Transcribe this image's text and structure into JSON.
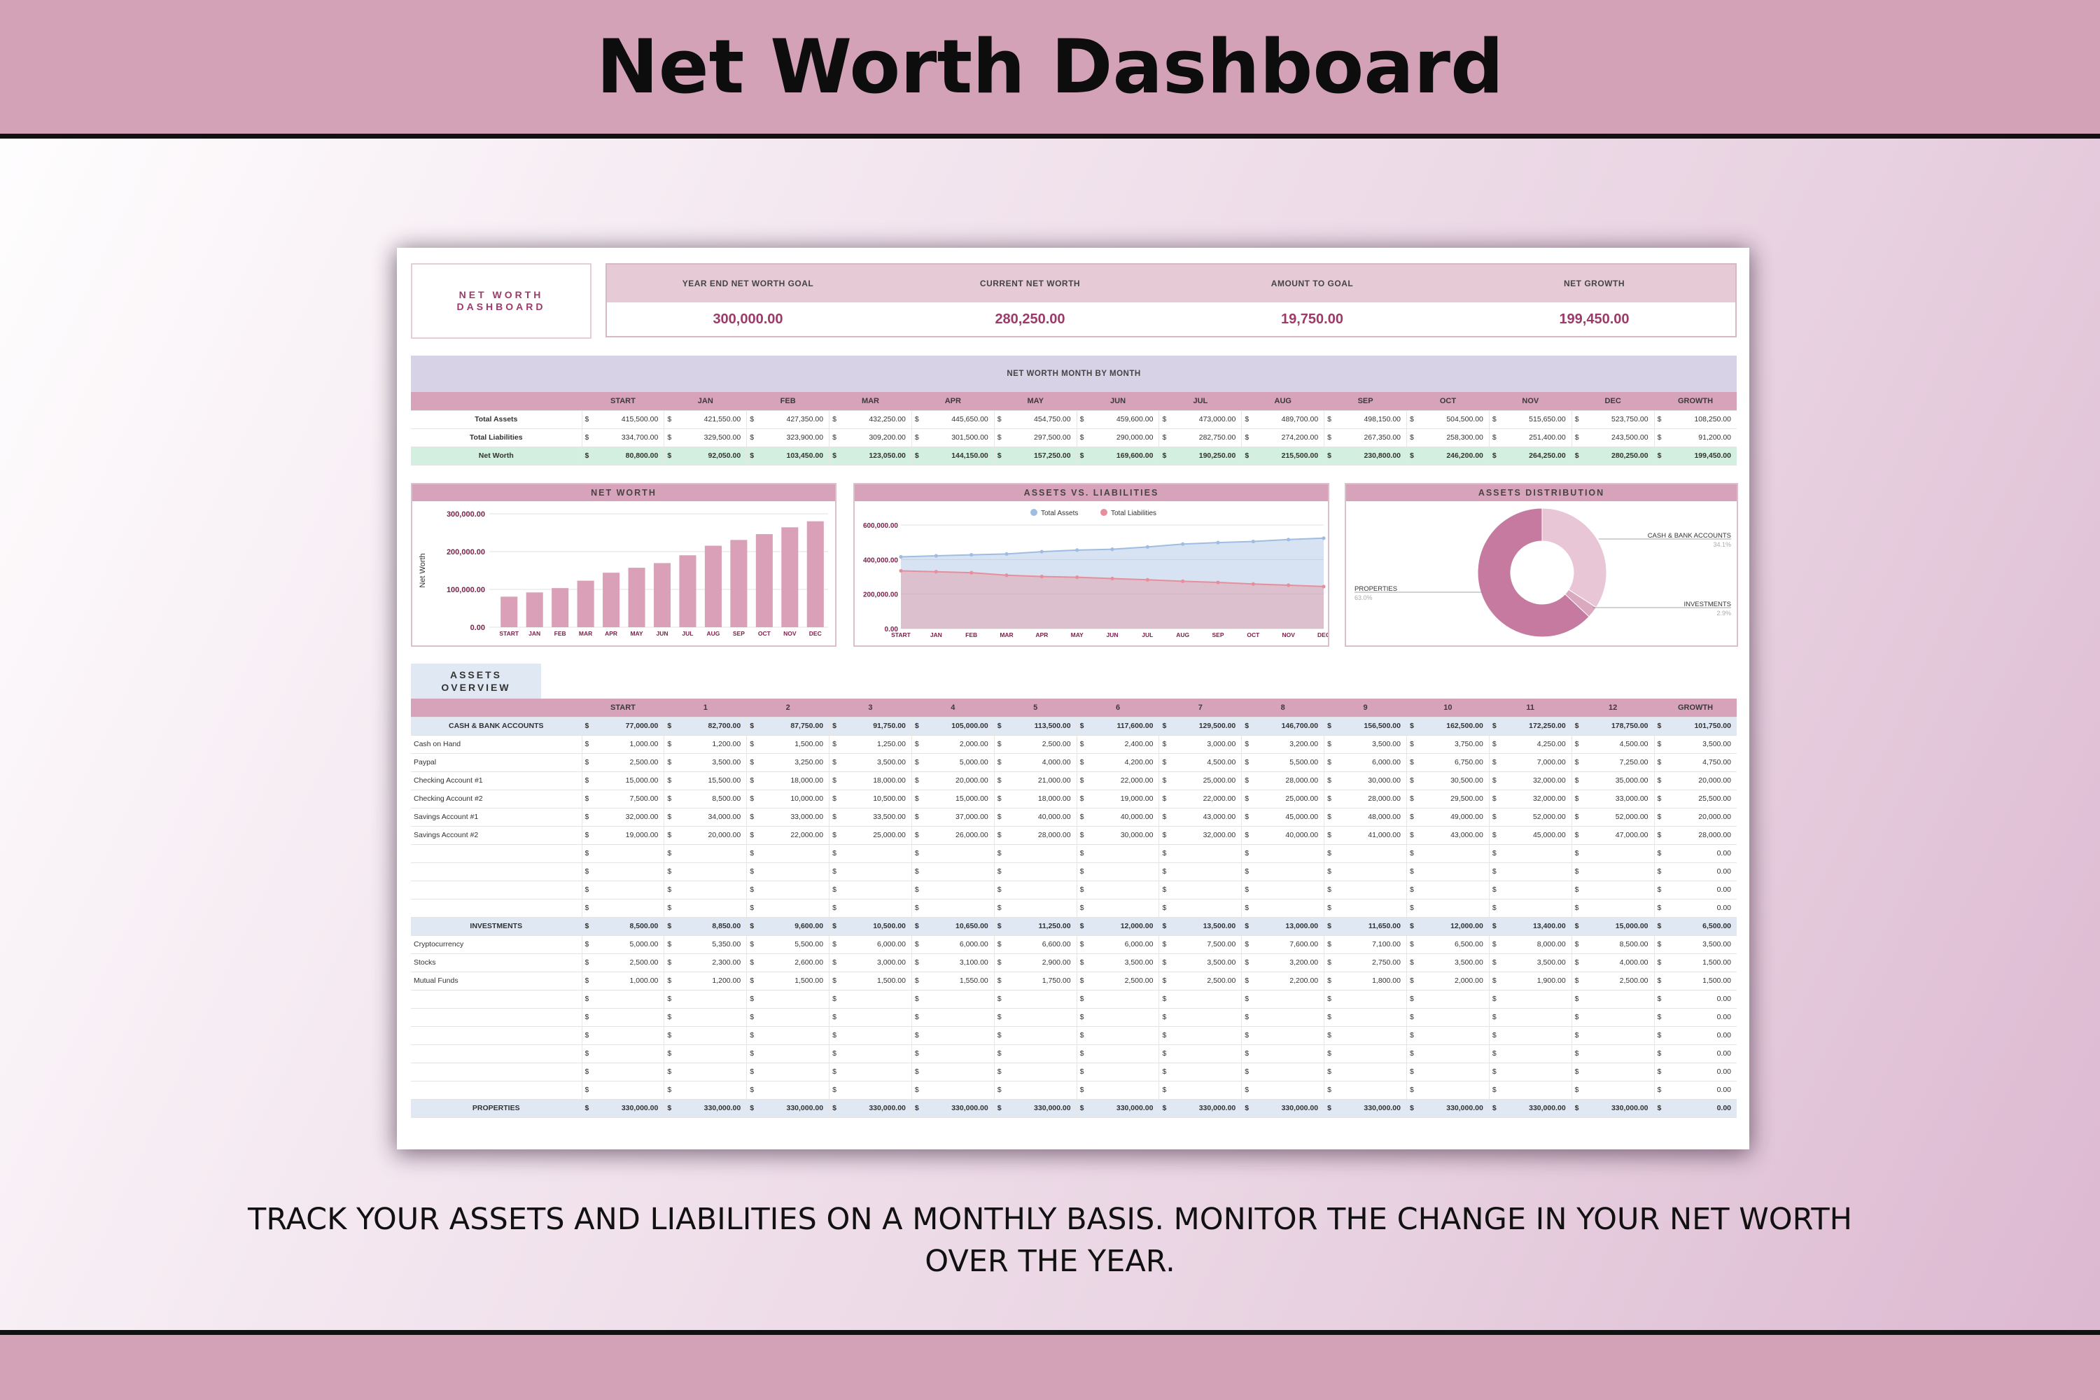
{
  "page": {
    "title": "Net Worth Dashboard",
    "caption_line1": "TRACK YOUR ASSETS AND LIABILITIES ON A MONTHLY BASIS. MONITOR THE CHANGE IN YOUR NET WORTH",
    "caption_line2": "OVER THE YEAR."
  },
  "sheet_title": {
    "line1": "NET WORTH",
    "line2": "DASHBOARD"
  },
  "kpis": [
    {
      "label": "YEAR END NET WORTH GOAL",
      "value": "300,000.00"
    },
    {
      "label": "CURRENT NET WORTH",
      "value": "280,250.00"
    },
    {
      "label": "AMOUNT TO GOAL",
      "value": "19,750.00"
    },
    {
      "label": "NET GROWTH",
      "value": "199,450.00"
    }
  ],
  "monthly": {
    "title": "NET WORTH MONTH BY MONTH",
    "columns": [
      "START",
      "JAN",
      "FEB",
      "MAR",
      "APR",
      "MAY",
      "JUN",
      "JUL",
      "AUG",
      "SEP",
      "OCT",
      "NOV",
      "DEC",
      "GROWTH"
    ],
    "rows": [
      {
        "label": "Total Assets",
        "values": [
          "415,500.00",
          "421,550.00",
          "427,350.00",
          "432,250.00",
          "445,650.00",
          "454,750.00",
          "459,600.00",
          "473,000.00",
          "489,700.00",
          "498,150.00",
          "504,500.00",
          "515,650.00",
          "523,750.00",
          "108,250.00"
        ]
      },
      {
        "label": "Total Liabilities",
        "values": [
          "334,700.00",
          "329,500.00",
          "323,900.00",
          "309,200.00",
          "301,500.00",
          "297,500.00",
          "290,000.00",
          "282,750.00",
          "274,200.00",
          "267,350.00",
          "258,300.00",
          "251,400.00",
          "243,500.00",
          "91,200.00"
        ]
      },
      {
        "label": "Net Worth",
        "values": [
          "80,800.00",
          "92,050.00",
          "103,450.00",
          "123,050.00",
          "144,150.00",
          "157,250.00",
          "169,600.00",
          "190,250.00",
          "215,500.00",
          "230,800.00",
          "246,200.00",
          "264,250.00",
          "280,250.00",
          "199,450.00"
        ]
      }
    ]
  },
  "currency": "$",
  "charts": {
    "net_worth_title": "NET WORTH",
    "assets_liab_title": "ASSETS VS. LIABILITIES",
    "distribution_title": "ASSETS DISTRIBUTION"
  },
  "chart_data": [
    {
      "type": "bar",
      "title": "NET WORTH",
      "ylabel": "Net Worth",
      "categories": [
        "START",
        "JAN",
        "FEB",
        "MAR",
        "APR",
        "MAY",
        "JUN",
        "JUL",
        "AUG",
        "SEP",
        "OCT",
        "NOV",
        "DEC"
      ],
      "values": [
        80800,
        92050,
        103450,
        123050,
        144150,
        157250,
        169600,
        190250,
        215500,
        230800,
        246200,
        264250,
        280250
      ],
      "ylim": [
        0,
        300000
      ],
      "yticks": [
        "0.00",
        "100,000.00",
        "200,000.00",
        "300,000.00"
      ],
      "color": "#d9a0b8"
    },
    {
      "type": "area",
      "title": "ASSETS VS. LIABILITIES",
      "categories": [
        "START",
        "JAN",
        "FEB",
        "MAR",
        "APR",
        "MAY",
        "JUN",
        "JUL",
        "AUG",
        "SEP",
        "OCT",
        "NOV",
        "DEC"
      ],
      "ylim": [
        0,
        600000
      ],
      "yticks": [
        "0.00",
        "200,000.00",
        "400,000.00",
        "600,000.00"
      ],
      "legend": "top",
      "series": [
        {
          "name": "Total Assets",
          "color": "#9fbde0",
          "values": [
            415500,
            421550,
            427350,
            432250,
            445650,
            454750,
            459600,
            473000,
            489700,
            498150,
            504500,
            515650,
            523750
          ]
        },
        {
          "name": "Total Liabilities",
          "color": "#e58f9c",
          "values": [
            334700,
            329500,
            323900,
            309200,
            301500,
            297500,
            290000,
            282750,
            274200,
            267350,
            258300,
            251400,
            243500
          ]
        }
      ]
    },
    {
      "type": "pie",
      "title": "ASSETS DISTRIBUTION",
      "slices": [
        {
          "name": "CASH & BANK ACCOUNTS",
          "pct": "34.1%",
          "value": 34.1,
          "color": "#e8c6d5"
        },
        {
          "name": "INVESTMENTS",
          "pct": "2.9%",
          "value": 2.9,
          "color": "#dba9bf"
        },
        {
          "name": "PROPERTIES",
          "pct": "63.0%",
          "value": 63.0,
          "color": "#c77aa0"
        }
      ]
    }
  ],
  "assets": {
    "tab_line1": "ASSETS",
    "tab_line2": "OVERVIEW",
    "columns": [
      "START",
      "1",
      "2",
      "3",
      "4",
      "5",
      "6",
      "7",
      "8",
      "9",
      "10",
      "11",
      "12",
      "GROWTH"
    ],
    "rows": [
      {
        "kind": "sect",
        "label": "CASH & BANK ACCOUNTS",
        "values": [
          "77,000.00",
          "82,700.00",
          "87,750.00",
          "91,750.00",
          "105,000.00",
          "113,500.00",
          "117,600.00",
          "129,500.00",
          "146,700.00",
          "156,500.00",
          "162,500.00",
          "172,250.00",
          "178,750.00",
          "101,750.00"
        ]
      },
      {
        "kind": "item",
        "label": "Cash on Hand",
        "values": [
          "1,000.00",
          "1,200.00",
          "1,500.00",
          "1,250.00",
          "2,000.00",
          "2,500.00",
          "2,400.00",
          "3,000.00",
          "3,200.00",
          "3,500.00",
          "3,750.00",
          "4,250.00",
          "4,500.00",
          "3,500.00"
        ]
      },
      {
        "kind": "item",
        "label": "Paypal",
        "values": [
          "2,500.00",
          "3,500.00",
          "3,250.00",
          "3,500.00",
          "5,000.00",
          "4,000.00",
          "4,200.00",
          "4,500.00",
          "5,500.00",
          "6,000.00",
          "6,750.00",
          "7,000.00",
          "7,250.00",
          "4,750.00"
        ]
      },
      {
        "kind": "item",
        "label": "Checking Account #1",
        "values": [
          "15,000.00",
          "15,500.00",
          "18,000.00",
          "18,000.00",
          "20,000.00",
          "21,000.00",
          "22,000.00",
          "25,000.00",
          "28,000.00",
          "30,000.00",
          "30,500.00",
          "32,000.00",
          "35,000.00",
          "20,000.00"
        ]
      },
      {
        "kind": "item",
        "label": "Checking Account #2",
        "values": [
          "7,500.00",
          "8,500.00",
          "10,000.00",
          "10,500.00",
          "15,000.00",
          "18,000.00",
          "19,000.00",
          "22,000.00",
          "25,000.00",
          "28,000.00",
          "29,500.00",
          "32,000.00",
          "33,000.00",
          "25,500.00"
        ]
      },
      {
        "kind": "item",
        "label": "Savings Account #1",
        "values": [
          "32,000.00",
          "34,000.00",
          "33,000.00",
          "33,500.00",
          "37,000.00",
          "40,000.00",
          "40,000.00",
          "43,000.00",
          "45,000.00",
          "48,000.00",
          "49,000.00",
          "52,000.00",
          "52,000.00",
          "20,000.00"
        ]
      },
      {
        "kind": "item",
        "label": "Savings Account #2",
        "values": [
          "19,000.00",
          "20,000.00",
          "22,000.00",
          "25,000.00",
          "26,000.00",
          "28,000.00",
          "30,000.00",
          "32,000.00",
          "40,000.00",
          "41,000.00",
          "43,000.00",
          "45,000.00",
          "47,000.00",
          "28,000.00"
        ]
      },
      {
        "kind": "item",
        "label": "",
        "values": [
          "",
          "",
          "",
          "",
          "",
          "",
          "",
          "",
          "",
          "",
          "",
          "",
          "",
          "0.00"
        ]
      },
      {
        "kind": "item",
        "label": "",
        "values": [
          "",
          "",
          "",
          "",
          "",
          "",
          "",
          "",
          "",
          "",
          "",
          "",
          "",
          "0.00"
        ]
      },
      {
        "kind": "item",
        "label": "",
        "values": [
          "",
          "",
          "",
          "",
          "",
          "",
          "",
          "",
          "",
          "",
          "",
          "",
          "",
          "0.00"
        ]
      },
      {
        "kind": "item",
        "label": "",
        "values": [
          "",
          "",
          "",
          "",
          "",
          "",
          "",
          "",
          "",
          "",
          "",
          "",
          "",
          "0.00"
        ]
      },
      {
        "kind": "sect",
        "label": "INVESTMENTS",
        "values": [
          "8,500.00",
          "8,850.00",
          "9,600.00",
          "10,500.00",
          "10,650.00",
          "11,250.00",
          "12,000.00",
          "13,500.00",
          "13,000.00",
          "11,650.00",
          "12,000.00",
          "13,400.00",
          "15,000.00",
          "6,500.00"
        ]
      },
      {
        "kind": "item",
        "label": "Cryptocurrency",
        "values": [
          "5,000.00",
          "5,350.00",
          "5,500.00",
          "6,000.00",
          "6,000.00",
          "6,600.00",
          "6,000.00",
          "7,500.00",
          "7,600.00",
          "7,100.00",
          "6,500.00",
          "8,000.00",
          "8,500.00",
          "3,500.00"
        ]
      },
      {
        "kind": "item",
        "label": "Stocks",
        "values": [
          "2,500.00",
          "2,300.00",
          "2,600.00",
          "3,000.00",
          "3,100.00",
          "2,900.00",
          "3,500.00",
          "3,500.00",
          "3,200.00",
          "2,750.00",
          "3,500.00",
          "3,500.00",
          "4,000.00",
          "1,500.00"
        ]
      },
      {
        "kind": "item",
        "label": "Mutual Funds",
        "values": [
          "1,000.00",
          "1,200.00",
          "1,500.00",
          "1,500.00",
          "1,550.00",
          "1,750.00",
          "2,500.00",
          "2,500.00",
          "2,200.00",
          "1,800.00",
          "2,000.00",
          "1,900.00",
          "2,500.00",
          "1,500.00"
        ]
      },
      {
        "kind": "item",
        "label": "",
        "values": [
          "",
          "",
          "",
          "",
          "",
          "",
          "",
          "",
          "",
          "",
          "",
          "",
          "",
          "0.00"
        ]
      },
      {
        "kind": "item",
        "label": "",
        "values": [
          "",
          "",
          "",
          "",
          "",
          "",
          "",
          "",
          "",
          "",
          "",
          "",
          "",
          "0.00"
        ]
      },
      {
        "kind": "item",
        "label": "",
        "values": [
          "",
          "",
          "",
          "",
          "",
          "",
          "",
          "",
          "",
          "",
          "",
          "",
          "",
          "0.00"
        ]
      },
      {
        "kind": "item",
        "label": "",
        "values": [
          "",
          "",
          "",
          "",
          "",
          "",
          "",
          "",
          "",
          "",
          "",
          "",
          "",
          "0.00"
        ]
      },
      {
        "kind": "item",
        "label": "",
        "values": [
          "",
          "",
          "",
          "",
          "",
          "",
          "",
          "",
          "",
          "",
          "",
          "",
          "",
          "0.00"
        ]
      },
      {
        "kind": "item",
        "label": "",
        "values": [
          "",
          "",
          "",
          "",
          "",
          "",
          "",
          "",
          "",
          "",
          "",
          "",
          "",
          "0.00"
        ]
      },
      {
        "kind": "sect",
        "label": "PROPERTIES",
        "values": [
          "330,000.00",
          "330,000.00",
          "330,000.00",
          "330,000.00",
          "330,000.00",
          "330,000.00",
          "330,000.00",
          "330,000.00",
          "330,000.00",
          "330,000.00",
          "330,000.00",
          "330,000.00",
          "330,000.00",
          "0.00"
        ]
      }
    ]
  }
}
